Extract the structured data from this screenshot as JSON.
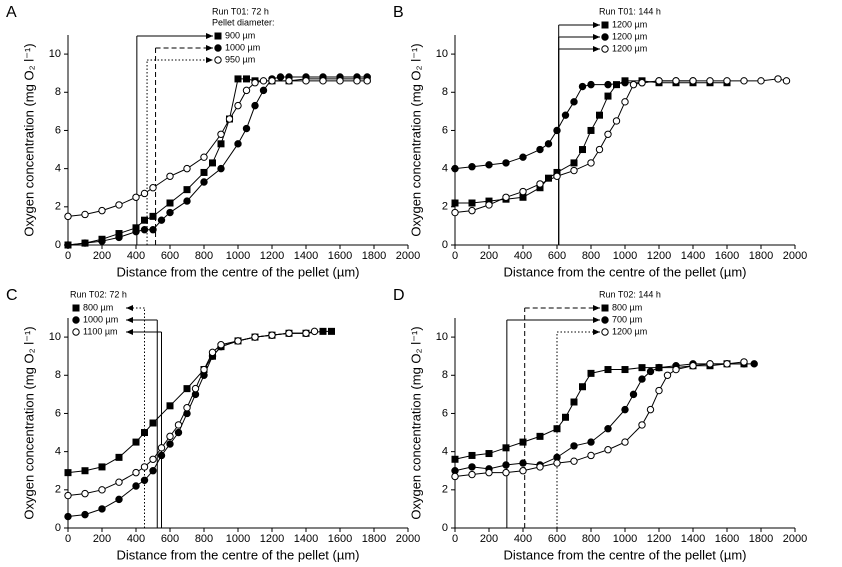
{
  "chart_data": [
    {
      "type": "line",
      "panel": "A",
      "legend_title": "Run T01: 72 h",
      "legend_subtitle": "Pellet diameter:",
      "legend": "top-center",
      "x_label": "Distance from the centre of the pellet (µm)",
      "y_label": "Oxygen concentration (mg O₂ l⁻¹)",
      "xlim": [
        0,
        2000
      ],
      "xticks": [
        0,
        200,
        400,
        600,
        800,
        1000,
        1200,
        1400,
        1600,
        1800,
        2000
      ],
      "ylim": [
        0,
        11
      ],
      "yticks": [
        0,
        2,
        4,
        6,
        8,
        10
      ],
      "series": [
        {
          "name": "900 µm",
          "marker": "square",
          "color": "#000000",
          "line_style": "solid",
          "radius_line_x": 405,
          "x": [
            0,
            100,
            200,
            300,
            400,
            450,
            500,
            600,
            700,
            800,
            850,
            900,
            950,
            1000,
            1050,
            1100,
            1200,
            1300,
            1400,
            1500,
            1600,
            1700,
            1760
          ],
          "values": [
            0,
            0.1,
            0.3,
            0.6,
            0.9,
            1.3,
            1.5,
            2.2,
            2.9,
            3.8,
            4.3,
            5.3,
            6.6,
            8.7,
            8.7,
            8.6,
            8.6,
            8.6,
            8.7,
            8.7,
            8.7,
            8.7,
            8.7
          ]
        },
        {
          "name": "1000 µm",
          "marker": "circle",
          "color": "#000000",
          "line_style": "dashed",
          "radius_line_x": 515,
          "x": [
            0,
            100,
            200,
            300,
            400,
            450,
            500,
            550,
            600,
            700,
            800,
            900,
            1000,
            1050,
            1100,
            1150,
            1200,
            1250,
            1300,
            1400,
            1500,
            1600,
            1700,
            1760
          ],
          "values": [
            0,
            0.1,
            0.2,
            0.4,
            0.7,
            0.8,
            0.8,
            1.3,
            1.7,
            2.3,
            3.3,
            4.0,
            5.3,
            6.1,
            7.3,
            8.1,
            8.7,
            8.8,
            8.8,
            8.8,
            8.8,
            8.8,
            8.8,
            8.8
          ]
        },
        {
          "name": "950 µm",
          "marker": "open-circle",
          "color": "#000000",
          "line_style": "dotted",
          "radius_line_x": 465,
          "x": [
            0,
            100,
            200,
            300,
            400,
            450,
            500,
            600,
            700,
            800,
            900,
            950,
            1000,
            1050,
            1100,
            1150,
            1200,
            1300,
            1400,
            1500,
            1600,
            1700,
            1760
          ],
          "values": [
            1.5,
            1.6,
            1.8,
            2.1,
            2.5,
            2.7,
            3.0,
            3.6,
            4.0,
            4.6,
            5.8,
            6.6,
            7.3,
            8.1,
            8.5,
            8.6,
            8.6,
            8.6,
            8.6,
            8.6,
            8.6,
            8.6,
            8.6
          ]
        }
      ]
    },
    {
      "type": "line",
      "panel": "B",
      "legend_title": "Run T01: 144 h",
      "legend": "top-center",
      "x_label": "Distance from the centre of the pellet (µm)",
      "y_label": "Oxygen concentration (mg O₂ l⁻¹)",
      "xlim": [
        0,
        2000
      ],
      "xticks": [
        0,
        200,
        400,
        600,
        800,
        1000,
        1200,
        1400,
        1600,
        1800,
        2000
      ],
      "ylim": [
        0,
        11
      ],
      "yticks": [
        0,
        2,
        4,
        6,
        8,
        10
      ],
      "series": [
        {
          "name": "1200 µm",
          "marker": "square",
          "color": "#000000",
          "line_style": "solid",
          "radius_line_x": 610,
          "x": [
            0,
            100,
            200,
            300,
            400,
            500,
            550,
            600,
            700,
            750,
            800,
            850,
            900,
            950,
            1000,
            1100,
            1200,
            1300,
            1400,
            1500,
            1600
          ],
          "values": [
            2.2,
            2.2,
            2.3,
            2.4,
            2.5,
            3.0,
            3.5,
            3.8,
            4.3,
            5.0,
            6.0,
            6.8,
            7.8,
            8.4,
            8.6,
            8.6,
            8.5,
            8.5,
            8.5,
            8.5,
            8.5
          ]
        },
        {
          "name": "1200 µm",
          "marker": "circle",
          "color": "#000000",
          "line_style": "solid",
          "radius_line_x": 610,
          "x": [
            0,
            100,
            200,
            300,
            400,
            500,
            550,
            600,
            650,
            700,
            750,
            800,
            900,
            1000,
            1100,
            1200,
            1300,
            1400
          ],
          "values": [
            4.0,
            4.1,
            4.2,
            4.3,
            4.6,
            5.0,
            5.3,
            6.0,
            6.8,
            7.5,
            8.3,
            8.4,
            8.4,
            8.5,
            8.5,
            8.6,
            8.6,
            8.6
          ]
        },
        {
          "name": "1200 µm",
          "marker": "open-circle",
          "color": "#000000",
          "line_style": "solid",
          "radius_line_x": 610,
          "x": [
            0,
            100,
            200,
            300,
            400,
            500,
            600,
            700,
            800,
            850,
            900,
            950,
            1000,
            1050,
            1100,
            1200,
            1300,
            1400,
            1500,
            1600,
            1700,
            1800,
            1900,
            1950
          ],
          "values": [
            1.7,
            1.8,
            2.1,
            2.5,
            2.8,
            3.2,
            3.6,
            3.9,
            4.3,
            5.0,
            5.8,
            6.5,
            7.5,
            8.4,
            8.5,
            8.6,
            8.6,
            8.6,
            8.6,
            8.6,
            8.6,
            8.6,
            8.7,
            8.6
          ]
        }
      ]
    },
    {
      "type": "line",
      "panel": "C",
      "legend_title": "Run T02: 72 h",
      "legend": "top-left",
      "x_label": "Distance from the centre of the pellet (µm)",
      "y_label": "Oxygen concentration (mg O₂ l⁻¹)",
      "xlim": [
        0,
        2000
      ],
      "xticks": [
        0,
        200,
        400,
        600,
        800,
        1000,
        1200,
        1400,
        1600,
        1800,
        2000
      ],
      "ylim": [
        0,
        11
      ],
      "yticks": [
        0,
        2,
        4,
        6,
        8,
        10
      ],
      "series": [
        {
          "name": "800 µm",
          "marker": "square",
          "color": "#000000",
          "line_style": "dotted",
          "radius_line_x": 450,
          "x": [
            0,
            100,
            200,
            300,
            400,
            450,
            500,
            600,
            700,
            800,
            850,
            900,
            1000,
            1100,
            1200,
            1300,
            1400,
            1500,
            1550
          ],
          "values": [
            2.9,
            3.0,
            3.2,
            3.7,
            4.5,
            5.0,
            5.5,
            6.4,
            7.3,
            8.3,
            9.0,
            9.5,
            9.8,
            10.0,
            10.1,
            10.2,
            10.2,
            10.3,
            10.3
          ]
        },
        {
          "name": "1000 µm",
          "marker": "circle",
          "color": "#000000",
          "line_style": "solid",
          "radius_line_x": 525,
          "x": [
            0,
            100,
            200,
            300,
            400,
            450,
            500,
            550,
            600,
            650,
            700,
            750,
            800,
            850,
            900,
            1000,
            1100,
            1200,
            1300,
            1400
          ],
          "values": [
            0.6,
            0.7,
            1.0,
            1.5,
            2.2,
            2.5,
            3.0,
            3.8,
            4.4,
            5.0,
            6.0,
            7.0,
            8.0,
            9.0,
            9.5,
            9.8,
            10.0,
            10.1,
            10.2,
            10.2
          ]
        },
        {
          "name": "1100 µm",
          "marker": "open-circle",
          "color": "#000000",
          "line_style": "solid",
          "radius_line_x": 550,
          "x": [
            0,
            100,
            200,
            300,
            400,
            450,
            500,
            550,
            600,
            650,
            700,
            750,
            800,
            850,
            900,
            1000,
            1100,
            1200,
            1300,
            1400,
            1450
          ],
          "values": [
            1.7,
            1.8,
            2.0,
            2.4,
            2.9,
            3.2,
            3.6,
            4.2,
            4.8,
            5.4,
            6.3,
            7.3,
            8.3,
            9.2,
            9.6,
            9.8,
            10.0,
            10.1,
            10.2,
            10.2,
            10.3
          ]
        }
      ]
    },
    {
      "type": "line",
      "panel": "D",
      "legend_title": "Run T02: 144 h",
      "legend": "top-center",
      "x_label": "Distance from the centre of the pellet (µm)",
      "y_label": "Oxygen concentration (mg O₂ l⁻¹)",
      "xlim": [
        0,
        2000
      ],
      "xticks": [
        0,
        200,
        400,
        600,
        800,
        1000,
        1200,
        1400,
        1600,
        1800,
        2000
      ],
      "ylim": [
        0,
        11
      ],
      "yticks": [
        0,
        2,
        4,
        6,
        8,
        10
      ],
      "series": [
        {
          "name": "800 µm",
          "marker": "square",
          "color": "#000000",
          "line_style": "dashed",
          "radius_line_x": 410,
          "x": [
            0,
            100,
            200,
            300,
            400,
            500,
            600,
            650,
            700,
            750,
            800,
            900,
            1000,
            1100,
            1200,
            1300,
            1400,
            1500,
            1600,
            1700
          ],
          "values": [
            3.6,
            3.8,
            3.9,
            4.2,
            4.5,
            4.8,
            5.2,
            5.8,
            6.6,
            7.4,
            8.1,
            8.3,
            8.3,
            8.4,
            8.4,
            8.4,
            8.5,
            8.5,
            8.6,
            8.6
          ]
        },
        {
          "name": "700 µm",
          "marker": "circle",
          "color": "#000000",
          "line_style": "solid",
          "radius_line_x": 305,
          "x": [
            0,
            100,
            200,
            300,
            400,
            500,
            600,
            700,
            800,
            900,
            1000,
            1050,
            1100,
            1150,
            1200,
            1300,
            1400,
            1500,
            1600,
            1700,
            1760
          ],
          "values": [
            3.0,
            3.2,
            3.1,
            3.3,
            3.4,
            3.3,
            3.7,
            4.3,
            4.5,
            5.2,
            6.2,
            7.0,
            7.8,
            8.2,
            8.4,
            8.5,
            8.6,
            8.6,
            8.6,
            8.6,
            8.6
          ]
        },
        {
          "name": "1200 µm",
          "marker": "open-circle",
          "color": "#000000",
          "line_style": "dotted",
          "radius_line_x": 600,
          "x": [
            0,
            100,
            200,
            300,
            400,
            500,
            600,
            700,
            800,
            900,
            1000,
            1100,
            1150,
            1200,
            1250,
            1300,
            1400,
            1500,
            1600,
            1700
          ],
          "values": [
            2.7,
            2.8,
            2.9,
            2.9,
            3.0,
            3.2,
            3.4,
            3.5,
            3.8,
            4.1,
            4.5,
            5.4,
            6.2,
            7.2,
            8.0,
            8.3,
            8.5,
            8.6,
            8.6,
            8.7
          ]
        }
      ]
    }
  ]
}
